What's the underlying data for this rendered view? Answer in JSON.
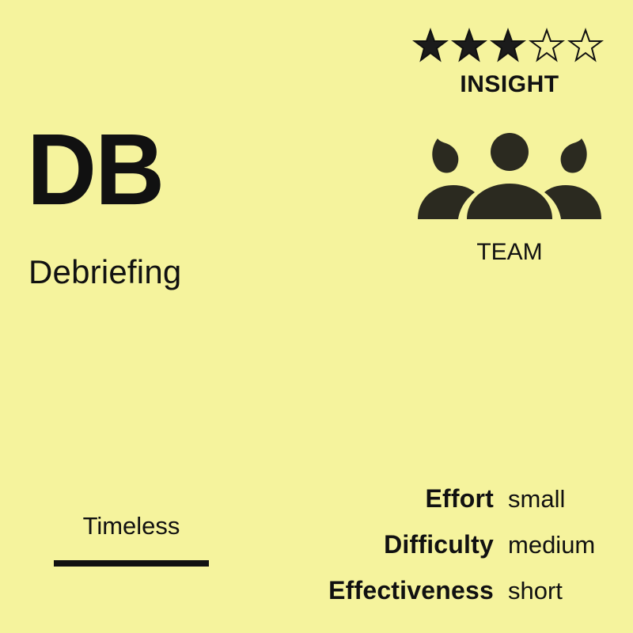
{
  "rating": {
    "stars": [
      {
        "name": "star-filled-icon",
        "state": "filled"
      },
      {
        "name": "star-filled-icon",
        "state": "filled"
      },
      {
        "name": "star-filled-icon",
        "state": "filled"
      },
      {
        "name": "star-outline-icon",
        "state": "outline"
      },
      {
        "name": "star-outline-icon",
        "state": "outline"
      }
    ],
    "value": 3,
    "max": 5
  },
  "category": "INSIGHT",
  "group": {
    "icon": "team-icon",
    "label": "TEAM"
  },
  "method": {
    "abbr": "DB",
    "title": "Debriefing"
  },
  "timing": {
    "label": "Timeless"
  },
  "metrics": [
    {
      "label": "Effort",
      "value": "small"
    },
    {
      "label": "Difficulty",
      "value": "medium"
    },
    {
      "label": "Effectiveness",
      "value": "short"
    }
  ],
  "colors": {
    "background": "#f5f39d",
    "ink": "#111111",
    "icon": "#2b2a20"
  }
}
